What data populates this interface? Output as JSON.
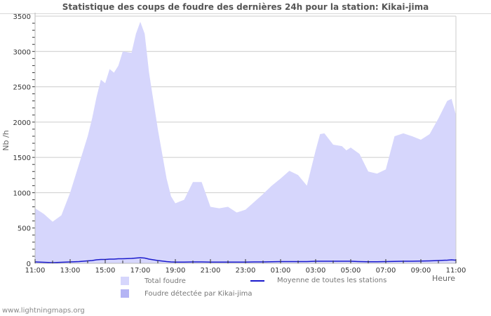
{
  "title": "Statistique des coups de foudre des dernières 24h pour la station: Kikai-jima",
  "footer": "www.lightningmaps.org",
  "colors": {
    "total_fill": "#d6d6fc",
    "station_fill": "#b4b4f4",
    "average_line": "#1a1acc",
    "grid": "#cccccc",
    "axis": "#bbbbbb"
  },
  "legend": {
    "total": "Total foudre",
    "station": "Foudre détectée par Kikai-jima",
    "average": "Moyenne de toutes les stations"
  },
  "chart_data": {
    "type": "area",
    "title": "Statistique des coups de foudre des dernières 24h pour la station: Kikai-jima",
    "xlabel": "Heure",
    "ylabel": "Nb /h",
    "ylim": [
      0,
      3500
    ],
    "yticks": [
      0,
      500,
      1000,
      1500,
      2000,
      2500,
      3000,
      3500
    ],
    "xtick_labels": [
      "11:00",
      "13:00",
      "15:00",
      "17:00",
      "19:00",
      "21:00",
      "23:00",
      "01:00",
      "03:00",
      "05:00",
      "07:00",
      "09:00",
      "11:00"
    ],
    "grid": true,
    "legend_position": "bottom",
    "x_hours": [
      0,
      0.5,
      1,
      1.5,
      2,
      2.5,
      3,
      3.25,
      3.5,
      3.75,
      4,
      4.25,
      4.5,
      4.75,
      5,
      5.5,
      5.75,
      6,
      6.25,
      6.5,
      7,
      7.5,
      7.75,
      8,
      8.5,
      9,
      9.5,
      10,
      10.5,
      11,
      11.5,
      12,
      12.5,
      13,
      13.5,
      14,
      14.5,
      15,
      15.5,
      16,
      16.25,
      16.5,
      17,
      17.5,
      17.75,
      18,
      18.5,
      19,
      19.5,
      20,
      20.5,
      21,
      21.5,
      22,
      22.5,
      23,
      23.5,
      23.75,
      24
    ],
    "series": [
      {
        "name": "Total foudre",
        "values": [
          780,
          700,
          590,
          680,
          1000,
          1400,
          1800,
          2050,
          2350,
          2600,
          2550,
          2750,
          2700,
          2800,
          3000,
          2980,
          3250,
          3420,
          3250,
          2700,
          1900,
          1200,
          950,
          850,
          900,
          1150,
          1150,
          800,
          780,
          800,
          720,
          760,
          870,
          980,
          1100,
          1200,
          1310,
          1250,
          1100,
          1600,
          1830,
          1840,
          1680,
          1660,
          1600,
          1640,
          1550,
          1300,
          1270,
          1330,
          1800,
          1840,
          1800,
          1750,
          1830,
          2050,
          2300,
          2330,
          2100
        ]
      },
      {
        "name": "Foudre détectée par Kikai-jima",
        "values": [
          0,
          0,
          0,
          0,
          0,
          0,
          0,
          0,
          0,
          0,
          0,
          0,
          0,
          0,
          0,
          0,
          0,
          0,
          0,
          0,
          0,
          0,
          0,
          0,
          0,
          0,
          0,
          0,
          0,
          0,
          0,
          0,
          0,
          0,
          0,
          0,
          0,
          0,
          0,
          0,
          0,
          0,
          0,
          0,
          0,
          0,
          0,
          0,
          0,
          0,
          0,
          0,
          0,
          0,
          0,
          0,
          0,
          0,
          0
        ]
      },
      {
        "name": "Moyenne de toutes les stations",
        "values": [
          20,
          15,
          10,
          15,
          20,
          25,
          35,
          40,
          50,
          55,
          55,
          60,
          60,
          65,
          65,
          70,
          75,
          80,
          75,
          60,
          40,
          25,
          20,
          18,
          18,
          20,
          20,
          18,
          18,
          18,
          18,
          18,
          20,
          20,
          22,
          25,
          25,
          25,
          25,
          30,
          30,
          30,
          30,
          30,
          30,
          30,
          25,
          22,
          22,
          25,
          28,
          30,
          30,
          32,
          35,
          40,
          45,
          50,
          45
        ]
      }
    ]
  }
}
